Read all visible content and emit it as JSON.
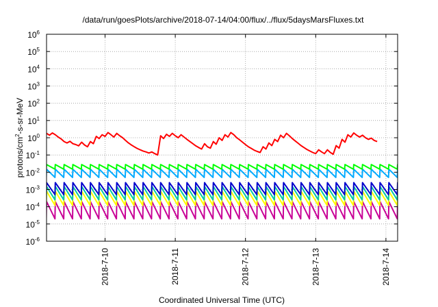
{
  "chart_data": {
    "type": "line",
    "title": "/data/run/goesPlots/archive/2018-07-14/04:00/flux/../flux/5daysMarsFluxes.txt",
    "xlabel": "Coordinated Universal Time (UTC)",
    "ylabel": {
      "main": "protons/cm",
      "sup": "2",
      "rest": "-s-sr-MeV"
    },
    "y_scale": "log",
    "ylim": [
      1e-06,
      1000000.0
    ],
    "y_ticks": [
      {
        "value": 1e-06,
        "base": "10",
        "exp": "-6"
      },
      {
        "value": 1e-05,
        "base": "10",
        "exp": "-5"
      },
      {
        "value": 0.0001,
        "base": "10",
        "exp": "-4"
      },
      {
        "value": 0.001,
        "base": "10",
        "exp": "-3"
      },
      {
        "value": 0.01,
        "base": "10",
        "exp": "-2"
      },
      {
        "value": 0.1,
        "base": "10",
        "exp": "-1"
      },
      {
        "value": 1,
        "base": "10",
        "exp": "0"
      },
      {
        "value": 10,
        "base": "10",
        "exp": "1"
      },
      {
        "value": 100,
        "base": "10",
        "exp": "2"
      },
      {
        "value": 1000,
        "base": "10",
        "exp": "3"
      },
      {
        "value": 10000,
        "base": "10",
        "exp": "4"
      },
      {
        "value": 100000,
        "base": "10",
        "exp": "5"
      },
      {
        "value": 1000000,
        "base": "10",
        "exp": "6"
      }
    ],
    "xlim": [
      "2018-07-09T04:00",
      "2018-07-14T04:00"
    ],
    "x_ticks": [
      "2018-7-10",
      "2018-7-11",
      "2018-7-12",
      "2018-7-13",
      "2018-7-14"
    ],
    "grid": true,
    "series": [
      {
        "color": "#ff0000",
        "values": [
          [
            "2018-07-09T04:00",
            1.8
          ],
          [
            "2018-07-09T05:00",
            1.4
          ],
          [
            "2018-07-09T06:00",
            1.9
          ],
          [
            "2018-07-09T07:00",
            1.5
          ],
          [
            "2018-07-09T08:00",
            1.1
          ],
          [
            "2018-07-09T09:00",
            0.85
          ],
          [
            "2018-07-09T10:00",
            0.6
          ],
          [
            "2018-07-09T11:00",
            0.5
          ],
          [
            "2018-07-09T12:00",
            0.62
          ],
          [
            "2018-07-09T13:00",
            0.45
          ],
          [
            "2018-07-09T14:00",
            0.4
          ],
          [
            "2018-07-09T15:00",
            0.34
          ],
          [
            "2018-07-09T16:00",
            0.55
          ],
          [
            "2018-07-09T17:00",
            0.38
          ],
          [
            "2018-07-09T18:00",
            0.3
          ],
          [
            "2018-07-09T19:00",
            0.6
          ],
          [
            "2018-07-09T20:00",
            0.45
          ],
          [
            "2018-07-09T21:00",
            1.2
          ],
          [
            "2018-07-09T22:00",
            0.9
          ],
          [
            "2018-07-09T23:00",
            1.5
          ],
          [
            "2018-07-10T00:00",
            1.2
          ],
          [
            "2018-07-10T01:00",
            2.0
          ],
          [
            "2018-07-10T02:00",
            1.5
          ],
          [
            "2018-07-10T03:00",
            1.1
          ],
          [
            "2018-07-10T04:00",
            1.8
          ],
          [
            "2018-07-10T05:00",
            1.3
          ],
          [
            "2018-07-10T06:00",
            1.0
          ],
          [
            "2018-07-10T07:00",
            0.7
          ],
          [
            "2018-07-10T08:00",
            0.5
          ],
          [
            "2018-07-10T09:00",
            0.38
          ],
          [
            "2018-07-10T10:00",
            0.3
          ],
          [
            "2018-07-10T11:00",
            0.24
          ],
          [
            "2018-07-10T12:00",
            0.2
          ],
          [
            "2018-07-10T13:00",
            0.17
          ],
          [
            "2018-07-10T14:00",
            0.15
          ],
          [
            "2018-07-10T15:00",
            0.13
          ],
          [
            "2018-07-10T16:00",
            0.15
          ],
          [
            "2018-07-10T17:00",
            0.12
          ],
          [
            "2018-07-10T18:00",
            0.1
          ],
          [
            "2018-07-10T19:00",
            1.3
          ],
          [
            "2018-07-10T20:00",
            0.9
          ],
          [
            "2018-07-10T21:00",
            1.6
          ],
          [
            "2018-07-10T22:00",
            1.2
          ],
          [
            "2018-07-10T23:00",
            1.8
          ],
          [
            "2018-07-11T00:00",
            1.3
          ],
          [
            "2018-07-11T01:00",
            1.0
          ],
          [
            "2018-07-11T02:00",
            1.5
          ],
          [
            "2018-07-11T03:00",
            1.1
          ],
          [
            "2018-07-11T04:00",
            0.8
          ],
          [
            "2018-07-11T05:00",
            0.6
          ],
          [
            "2018-07-11T06:00",
            0.45
          ],
          [
            "2018-07-11T07:00",
            0.34
          ],
          [
            "2018-07-11T08:00",
            0.27
          ],
          [
            "2018-07-11T09:00",
            0.22
          ],
          [
            "2018-07-11T10:00",
            0.45
          ],
          [
            "2018-07-11T11:00",
            0.3
          ],
          [
            "2018-07-11T12:00",
            0.25
          ],
          [
            "2018-07-11T13:00",
            0.6
          ],
          [
            "2018-07-11T14:00",
            0.42
          ],
          [
            "2018-07-11T15:00",
            1.0
          ],
          [
            "2018-07-11T16:00",
            0.7
          ],
          [
            "2018-07-11T17:00",
            1.5
          ],
          [
            "2018-07-11T18:00",
            1.1
          ],
          [
            "2018-07-11T19:00",
            2.0
          ],
          [
            "2018-07-11T20:00",
            1.5
          ],
          [
            "2018-07-11T21:00",
            1.0
          ],
          [
            "2018-07-11T22:00",
            0.75
          ],
          [
            "2018-07-11T23:00",
            0.55
          ],
          [
            "2018-07-12T00:00",
            0.4
          ],
          [
            "2018-07-12T01:00",
            0.3
          ],
          [
            "2018-07-12T02:00",
            0.24
          ],
          [
            "2018-07-12T03:00",
            0.19
          ],
          [
            "2018-07-12T04:00",
            0.16
          ],
          [
            "2018-07-12T05:00",
            0.14
          ],
          [
            "2018-07-12T06:00",
            0.3
          ],
          [
            "2018-07-12T07:00",
            0.22
          ],
          [
            "2018-07-12T08:00",
            0.5
          ],
          [
            "2018-07-12T09:00",
            0.35
          ],
          [
            "2018-07-12T10:00",
            0.8
          ],
          [
            "2018-07-12T11:00",
            0.6
          ],
          [
            "2018-07-12T12:00",
            1.4
          ],
          [
            "2018-07-12T13:00",
            1.0
          ],
          [
            "2018-07-12T14:00",
            1.8
          ],
          [
            "2018-07-12T15:00",
            1.3
          ],
          [
            "2018-07-12T16:00",
            0.9
          ],
          [
            "2018-07-12T17:00",
            0.65
          ],
          [
            "2018-07-12T18:00",
            0.48
          ],
          [
            "2018-07-12T19:00",
            0.35
          ],
          [
            "2018-07-12T20:00",
            0.27
          ],
          [
            "2018-07-12T21:00",
            0.21
          ],
          [
            "2018-07-12T22:00",
            0.17
          ],
          [
            "2018-07-12T23:00",
            0.14
          ],
          [
            "2018-07-13T00:00",
            0.12
          ],
          [
            "2018-07-13T01:00",
            0.2
          ],
          [
            "2018-07-13T02:00",
            0.15
          ],
          [
            "2018-07-13T03:00",
            0.12
          ],
          [
            "2018-07-13T04:00",
            0.2
          ],
          [
            "2018-07-13T05:00",
            0.14
          ],
          [
            "2018-07-13T06:00",
            0.11
          ],
          [
            "2018-07-13T07:00",
            0.35
          ],
          [
            "2018-07-13T08:00",
            0.25
          ],
          [
            "2018-07-13T09:00",
            0.8
          ],
          [
            "2018-07-13T10:00",
            0.55
          ],
          [
            "2018-07-13T11:00",
            1.5
          ],
          [
            "2018-07-13T12:00",
            1.1
          ],
          [
            "2018-07-13T13:00",
            1.9
          ],
          [
            "2018-07-13T14:00",
            1.4
          ],
          [
            "2018-07-13T15:00",
            1.1
          ],
          [
            "2018-07-13T16:00",
            1.4
          ],
          [
            "2018-07-13T17:00",
            1.0
          ],
          [
            "2018-07-13T18:00",
            0.8
          ],
          [
            "2018-07-13T19:00",
            0.95
          ],
          [
            "2018-07-13T20:00",
            0.7
          ],
          [
            "2018-07-13T21:00",
            0.6
          ]
        ]
      },
      {
        "color": "#00ff00",
        "period_h": 3,
        "high": 0.028,
        "low": 0.015
      },
      {
        "color": "#00aaff",
        "period_h": 3,
        "high": 0.015,
        "low": 0.005
      },
      {
        "color": "#0000cc",
        "period_h": 3,
        "high": 0.0025,
        "low": 0.0005
      },
      {
        "color": "#00c8a0",
        "period_h": 3,
        "high": 0.0015,
        "low": 0.00025
      },
      {
        "color": "#ffff00",
        "period_h": 3,
        "high": 0.0008,
        "low": 0.00012
      },
      {
        "color": "#c80096",
        "period_h": 3,
        "high": 0.0002,
        "low": 2e-05
      }
    ]
  }
}
